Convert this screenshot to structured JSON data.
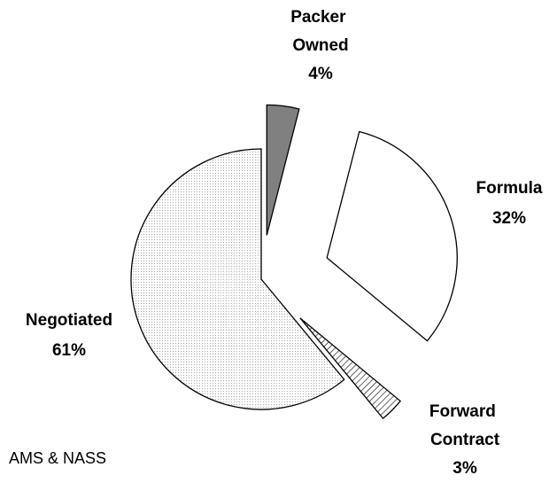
{
  "chart_data": {
    "type": "pie",
    "categories": [
      "Packer Owned",
      "Formula",
      "Forward Contract",
      "Negotiated"
    ],
    "values": [
      4,
      32,
      3,
      61
    ],
    "value_labels": [
      "4%",
      "32%",
      "3%",
      "61%"
    ],
    "colors": [
      "#808080",
      "#ffffff",
      "#c8c8c8",
      "#ececec"
    ],
    "source": "AMS & NASS"
  }
}
